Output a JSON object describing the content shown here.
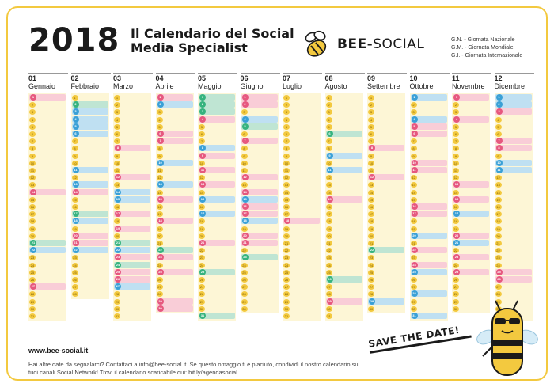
{
  "header": {
    "year": "2018",
    "title_line1": "Il Calendario del Social",
    "title_line2": "Media Specialist",
    "brand_bold": "BEE-",
    "brand_thin": "SOCIAL",
    "legend": [
      "G.N. - Giornata Nazionale",
      "G.M. - Giornata Mondiale",
      "G.I. - Giornata Internazionale"
    ]
  },
  "months": [
    {
      "num": "01",
      "name": "Gennaio",
      "days": 31,
      "events": [
        {
          "d": "1",
          "c": "pink"
        },
        {
          "d": "14",
          "c": "pink"
        },
        {
          "d": "21",
          "c": "green"
        },
        {
          "d": "22",
          "c": "blue"
        },
        {
          "d": "27",
          "c": "pink"
        }
      ]
    },
    {
      "num": "02",
      "name": "Febbraio",
      "days": 28,
      "events": [
        {
          "d": "2",
          "c": "green"
        },
        {
          "d": "3",
          "c": "blue"
        },
        {
          "d": "4",
          "c": "blue"
        },
        {
          "d": "5",
          "c": "blue"
        },
        {
          "d": "6",
          "c": "blue"
        },
        {
          "d": "11",
          "c": "blue"
        },
        {
          "d": "13",
          "c": "blue"
        },
        {
          "d": "14",
          "c": "pink"
        },
        {
          "d": "17",
          "c": "green"
        },
        {
          "d": "18",
          "c": "blue"
        },
        {
          "d": "20",
          "c": "pink"
        },
        {
          "d": "21",
          "c": "pink"
        },
        {
          "d": "22",
          "c": "blue"
        }
      ]
    },
    {
      "num": "03",
      "name": "Marzo",
      "days": 31,
      "events": [
        {
          "d": "8",
          "c": "pink"
        },
        {
          "d": "12",
          "c": "pink"
        },
        {
          "d": "14",
          "c": "blue"
        },
        {
          "d": "15",
          "c": "blue"
        },
        {
          "d": "17",
          "c": "pink"
        },
        {
          "d": "19",
          "c": "pink"
        },
        {
          "d": "21",
          "c": "green"
        },
        {
          "d": "22",
          "c": "blue"
        },
        {
          "d": "23",
          "c": "pink"
        },
        {
          "d": "24",
          "c": "green"
        },
        {
          "d": "25",
          "c": "pink"
        },
        {
          "d": "26",
          "c": "pink"
        },
        {
          "d": "27",
          "c": "blue"
        }
      ]
    },
    {
      "num": "04",
      "name": "Aprile",
      "days": 30,
      "events": [
        {
          "d": "1",
          "c": "pink"
        },
        {
          "d": "2",
          "c": "blue"
        },
        {
          "d": "6",
          "c": "pink"
        },
        {
          "d": "7",
          "c": "pink"
        },
        {
          "d": "10",
          "c": "blue"
        },
        {
          "d": "13",
          "c": "blue"
        },
        {
          "d": "15",
          "c": "pink"
        },
        {
          "d": "18",
          "c": "pink"
        },
        {
          "d": "22",
          "c": "green"
        },
        {
          "d": "23",
          "c": "pink"
        },
        {
          "d": "25",
          "c": "pink"
        },
        {
          "d": "29",
          "c": "pink"
        },
        {
          "d": "30",
          "c": "pink"
        }
      ]
    },
    {
      "num": "05",
      "name": "Maggio",
      "days": 31,
      "events": [
        {
          "d": "1",
          "c": "green"
        },
        {
          "d": "2",
          "c": "green"
        },
        {
          "d": "3",
          "c": "green"
        },
        {
          "d": "4",
          "c": "pink"
        },
        {
          "d": "8",
          "c": "blue"
        },
        {
          "d": "9",
          "c": "pink"
        },
        {
          "d": "11",
          "c": "pink"
        },
        {
          "d": "13",
          "c": "pink"
        },
        {
          "d": "15",
          "c": "blue"
        },
        {
          "d": "17",
          "c": "blue"
        },
        {
          "d": "21",
          "c": "pink"
        },
        {
          "d": "25",
          "c": "green"
        },
        {
          "d": "31",
          "c": "green"
        }
      ]
    },
    {
      "num": "06",
      "name": "Giugno",
      "days": 30,
      "events": [
        {
          "d": "1",
          "c": "pink"
        },
        {
          "d": "2",
          "c": "pink"
        },
        {
          "d": "4",
          "c": "blue"
        },
        {
          "d": "5",
          "c": "green"
        },
        {
          "d": "7",
          "c": "pink"
        },
        {
          "d": "12",
          "c": "pink"
        },
        {
          "d": "14",
          "c": "pink"
        },
        {
          "d": "15",
          "c": "blue"
        },
        {
          "d": "16",
          "c": "pink"
        },
        {
          "d": "17",
          "c": "pink"
        },
        {
          "d": "18",
          "c": "blue"
        },
        {
          "d": "20",
          "c": "pink"
        },
        {
          "d": "21",
          "c": "pink"
        },
        {
          "d": "23",
          "c": "green"
        }
      ]
    },
    {
      "num": "07",
      "name": "Luglio",
      "days": 31,
      "events": [
        {
          "d": "18",
          "c": "pink"
        }
      ]
    },
    {
      "num": "08",
      "name": "Agosto",
      "days": 31,
      "events": [
        {
          "d": "6",
          "c": "green"
        },
        {
          "d": "9",
          "c": "blue"
        },
        {
          "d": "11",
          "c": "blue"
        },
        {
          "d": "15",
          "c": "pink"
        },
        {
          "d": "26",
          "c": "green"
        },
        {
          "d": "29",
          "c": "pink"
        }
      ]
    },
    {
      "num": "09",
      "name": "Settembre",
      "days": 30,
      "events": [
        {
          "d": "8",
          "c": "pink"
        },
        {
          "d": "12",
          "c": "pink"
        },
        {
          "d": "22",
          "c": "green"
        },
        {
          "d": "29",
          "c": "blue"
        }
      ]
    },
    {
      "num": "10",
      "name": "Ottobre",
      "days": 31,
      "events": [
        {
          "d": "1",
          "c": "blue"
        },
        {
          "d": "4",
          "c": "blue"
        },
        {
          "d": "5",
          "c": "pink"
        },
        {
          "d": "6",
          "c": "pink"
        },
        {
          "d": "10",
          "c": "pink"
        },
        {
          "d": "11",
          "c": "pink"
        },
        {
          "d": "16",
          "c": "pink"
        },
        {
          "d": "17",
          "c": "pink"
        },
        {
          "d": "20",
          "c": "blue"
        },
        {
          "d": "22",
          "c": "pink"
        },
        {
          "d": "24",
          "c": "pink"
        },
        {
          "d": "25",
          "c": "blue"
        },
        {
          "d": "28",
          "c": "blue"
        },
        {
          "d": "31",
          "c": "blue"
        }
      ]
    },
    {
      "num": "11",
      "name": "Novembre",
      "days": 30,
      "events": [
        {
          "d": "1",
          "c": "pink"
        },
        {
          "d": "4",
          "c": "pink"
        },
        {
          "d": "13",
          "c": "pink"
        },
        {
          "d": "15",
          "c": "pink"
        },
        {
          "d": "17",
          "c": "blue"
        },
        {
          "d": "20",
          "c": "pink"
        },
        {
          "d": "21",
          "c": "blue"
        },
        {
          "d": "23",
          "c": "pink"
        },
        {
          "d": "25",
          "c": "pink"
        }
      ]
    },
    {
      "num": "12",
      "name": "Dicembre",
      "days": 31,
      "events": [
        {
          "d": "1",
          "c": "blue"
        },
        {
          "d": "2",
          "c": "blue"
        },
        {
          "d": "3",
          "c": "pink"
        },
        {
          "d": "7",
          "c": "pink"
        },
        {
          "d": "8",
          "c": "pink"
        },
        {
          "d": "10",
          "c": "blue"
        },
        {
          "d": "11",
          "c": "blue"
        },
        {
          "d": "25",
          "c": "pink"
        },
        {
          "d": "26",
          "c": "pink"
        }
      ]
    }
  ],
  "footer": {
    "url": "www.bee-social.it",
    "note": "Hai altre date da segnalarci? Contattaci a info@bee-social.it. Se questo omaggio ti è piaciuto, condividi il nostro calendario sui tuoi canali Social Network! Trovi il calendario scaricabile qui: bit.ly/agendasocial",
    "save_the_date": "SAVE THE DATE!"
  }
}
